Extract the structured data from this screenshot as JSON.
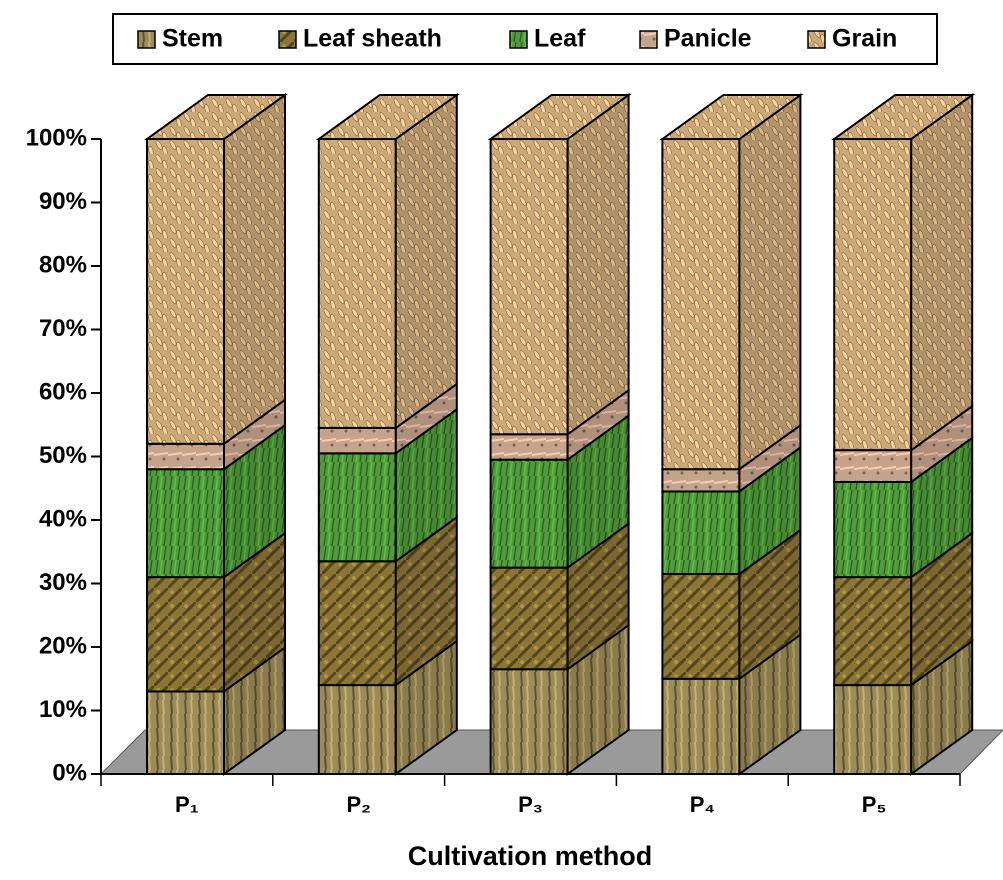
{
  "chart_data": {
    "type": "bar3d_stacked",
    "categories": [
      "P₁",
      "P₂",
      "P₃",
      "P₄",
      "P₅"
    ],
    "series": [
      {
        "name": "Stem",
        "color": "#9c8c58",
        "values": [
          13,
          14,
          16.5,
          15,
          14
        ]
      },
      {
        "name": "Leaf sheath",
        "color": "#8c7636",
        "values": [
          18,
          19.5,
          16,
          16.5,
          17
        ]
      },
      {
        "name": "Leaf",
        "color": "#4f9c3a",
        "values": [
          17,
          17,
          17,
          13,
          15
        ]
      },
      {
        "name": "Panicle",
        "color": "#c6a48c",
        "values": [
          4,
          4,
          4,
          3.5,
          5
        ]
      },
      {
        "name": "Grain",
        "color": "#caa878",
        "values": [
          48,
          45.5,
          46.5,
          52,
          49
        ]
      }
    ],
    "ylim": [
      0,
      100
    ],
    "yticks": [
      {
        "value": 0,
        "label": "0%"
      },
      {
        "value": 10,
        "label": "10%"
      },
      {
        "value": 20,
        "label": "20%"
      },
      {
        "value": 30,
        "label": "30%"
      },
      {
        "value": 40,
        "label": "40%"
      },
      {
        "value": 50,
        "label": "50%"
      },
      {
        "value": 60,
        "label": "60%"
      },
      {
        "value": 70,
        "label": "70%"
      },
      {
        "value": 80,
        "label": "80%"
      },
      {
        "value": 90,
        "label": "90%"
      },
      {
        "value": 100,
        "label": "100%"
      }
    ],
    "xlabel": "Cultivation method",
    "legend": "top"
  }
}
